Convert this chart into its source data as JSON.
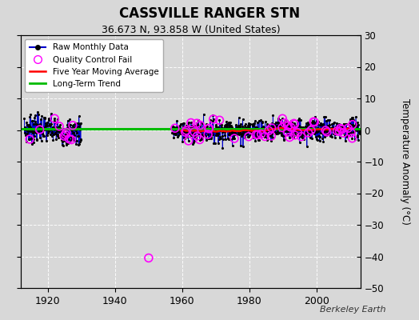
{
  "title": "CASSVILLE RANGER STN",
  "subtitle": "36.673 N, 93.858 W (United States)",
  "ylabel": "Temperature Anomaly (°C)",
  "watermark": "Berkeley Earth",
  "bg_color": "#d8d8d8",
  "plot_bg_color": "#d8d8d8",
  "xlim": [
    1912,
    2013
  ],
  "ylim": [
    -50,
    30
  ],
  "yticks": [
    -50,
    -40,
    -30,
    -20,
    -10,
    0,
    10,
    20,
    30
  ],
  "xticks": [
    1920,
    1940,
    1960,
    1980,
    2000
  ],
  "early_start_year": 1913,
  "early_end_year": 1930,
  "main_start_year": 1957,
  "main_end_year": 2013,
  "outlier_x": 1950.0,
  "outlier_y": -40.5,
  "long_term_trend_y": 0.3,
  "colors": {
    "raw_line": "#0000cc",
    "raw_dot": "#000000",
    "qc_fail": "#ff00ff",
    "five_year_avg": "#ff0000",
    "long_term": "#00bb00",
    "grid": "#ffffff",
    "legend_border": "#aaaaaa"
  },
  "legend_labels": [
    "Raw Monthly Data",
    "Quality Control Fail",
    "Five Year Moving Average",
    "Long-Term Trend"
  ],
  "early_qc_rate": 0.04,
  "main_qc_rate": 0.07,
  "early_std": 2.2,
  "main_std": 1.8
}
